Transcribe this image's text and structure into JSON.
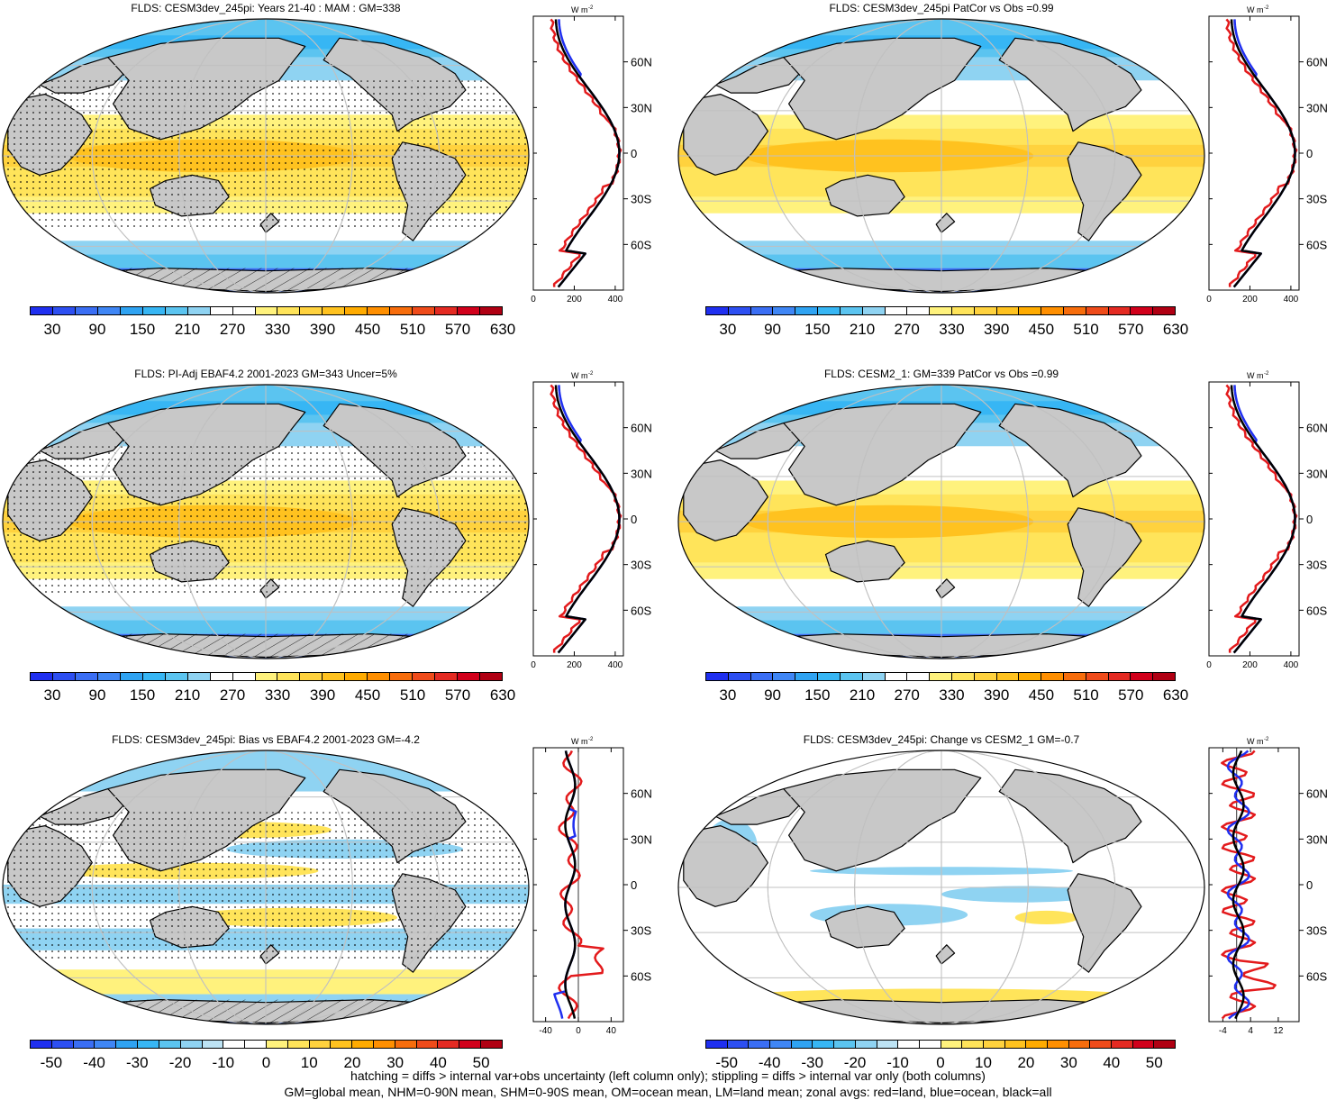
{
  "footer": {
    "line1": "hatching = diffs > internal var+obs uncertainty (left column only); stippling = diffs > internal var only (both columns)",
    "line2": "GM=global mean, NHM=0-90N mean, SHM=0-90S mean, OM=ocean mean, LM=land mean; zonal avgs: red=land, blue=ocean, black=all"
  },
  "scales": {
    "abs": {
      "labels": [
        "30",
        "90",
        "150",
        "210",
        "270",
        "330",
        "390",
        "450",
        "510",
        "570",
        "630"
      ],
      "colors": [
        "#1f2ff0",
        "#2d4ff2",
        "#3a6ef4",
        "#3f86f5",
        "#2fa3f2",
        "#37b6f4",
        "#5bc4f0",
        "#8fd3f2",
        "#ffffff",
        "#ffffff",
        "#fff27d",
        "#ffe45a",
        "#ffd23e",
        "#ffc21f",
        "#ffab00",
        "#ff8f00",
        "#f76d0c",
        "#ef4b1a",
        "#e42a22",
        "#d1001b",
        "#b00013"
      ]
    },
    "diff": {
      "labels": [
        "-50",
        "-40",
        "-30",
        "-20",
        "-10",
        "0",
        "10",
        "20",
        "30",
        "40",
        "50"
      ],
      "colors": [
        "#1f2ff0",
        "#2d4ff2",
        "#3a6ef4",
        "#3f86f5",
        "#2fa3f2",
        "#37b6f4",
        "#5bc4f0",
        "#8fd3f2",
        "#bde3f4",
        "#ffffff",
        "#ffffff",
        "#fff27d",
        "#ffe45a",
        "#ffd23e",
        "#ffc21f",
        "#ffab00",
        "#ff8f00",
        "#f76d0c",
        "#ef4b1a",
        "#e42a22",
        "#d1001b",
        "#b00013"
      ]
    }
  },
  "zonal": {
    "unit": "W m",
    "unit_sup": "-2",
    "lat_labels": [
      "60N",
      "30N",
      "0",
      "30S",
      "60S"
    ],
    "abs_ticks": [
      "0",
      "200",
      "400"
    ],
    "bias_ticks": [
      "-40",
      "0",
      "40"
    ],
    "change_ticks": [
      "-4",
      "4",
      "12"
    ]
  },
  "panels": [
    {
      "id": "p1",
      "title": "FLDS: CESM3dev_245pi: Years 21-40 : MAM : GM=338",
      "scale": "abs",
      "stipple": true,
      "hatch": true
    },
    {
      "id": "p2",
      "title": "FLDS: CESM3dev_245pi PatCor vs Obs =0.99",
      "scale": "abs",
      "stipple": false,
      "hatch": false
    },
    {
      "id": "p3",
      "title": "FLDS: PI-Adj EBAF4.2 2001-2023 GM=343 Uncer=5%",
      "scale": "abs",
      "stipple": true,
      "hatch": true
    },
    {
      "id": "p4",
      "title": "FLDS: CESM2_1: GM=339 PatCor vs Obs =0.99",
      "scale": "abs",
      "stipple": false,
      "hatch": false
    },
    {
      "id": "p5",
      "title": "FLDS: CESM3dev_245pi: Bias vs EBAF4.2 2001-2023 GM=-4.2",
      "scale": "diff",
      "stipple": true,
      "hatch": true
    },
    {
      "id": "p6",
      "title": "FLDS: CESM3dev_245pi: Change vs CESM2_1 GM=-0.7",
      "scale": "diff",
      "stipple": false,
      "hatch": false
    }
  ]
}
